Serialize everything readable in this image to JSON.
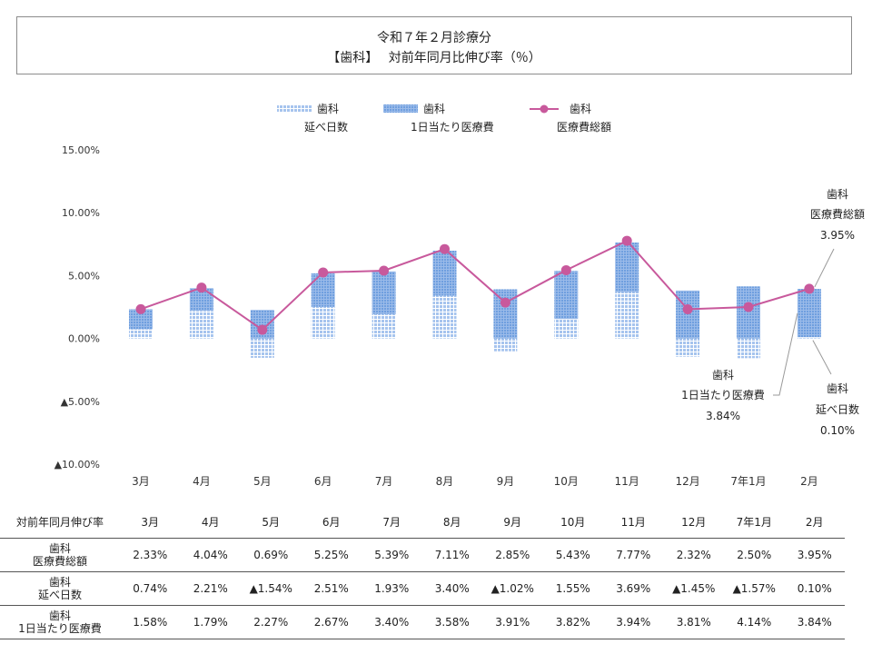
{
  "title": {
    "line1": "令和７年２月診療分",
    "line2": "【歯科】　 対前年同月比伸び率（％）"
  },
  "legend": [
    {
      "line1": "歯科",
      "line2": "延べ日数",
      "kind": "days"
    },
    {
      "line1": "歯科",
      "line2": "1日当たり医療費",
      "kind": "perday"
    },
    {
      "line1": "歯科",
      "line2": "医療費総額",
      "kind": "total"
    }
  ],
  "colors": {
    "bar_days": "#a6c4ee",
    "bar_perday": "#7fa9e2",
    "line_total": "#c8599c"
  },
  "chart_data": {
    "type": "bar",
    "stacked": true,
    "categories": [
      "3月",
      "4月",
      "5月",
      "6月",
      "7月",
      "8月",
      "9月",
      "10月",
      "11月",
      "12月",
      "7年1月",
      "2月"
    ],
    "ylim": [
      -10,
      15
    ],
    "yticks": [
      -10,
      -5,
      0,
      5,
      10,
      15
    ],
    "ytick_labels": [
      "▲10.00%",
      "▲5.00%",
      "0.00%",
      "5.00%",
      "10.00%",
      "15.00%"
    ],
    "grid": false,
    "legend_position": "top",
    "series": [
      {
        "name": "歯科 延べ日数",
        "type": "bar",
        "values": [
          0.74,
          2.21,
          -1.54,
          2.51,
          1.93,
          3.4,
          -1.02,
          1.55,
          3.69,
          -1.45,
          -1.57,
          0.1
        ]
      },
      {
        "name": "歯科 1日当たり医療費",
        "type": "bar",
        "values": [
          1.58,
          1.79,
          2.27,
          2.67,
          3.4,
          3.58,
          3.91,
          3.82,
          3.94,
          3.81,
          4.14,
          3.84
        ]
      },
      {
        "name": "歯科 医療費総額",
        "type": "line",
        "values": [
          2.33,
          4.04,
          0.69,
          5.25,
          5.39,
          7.11,
          2.85,
          5.43,
          7.77,
          2.32,
          2.5,
          3.95
        ]
      }
    ],
    "annotations": [
      {
        "series": "total",
        "lines": [
          "歯科",
          "医療費総額",
          "3.95%"
        ]
      },
      {
        "series": "perday",
        "lines": [
          "歯科",
          "1日当たり医療費",
          "3.84%"
        ]
      },
      {
        "series": "days",
        "lines": [
          "歯科",
          "延べ日数",
          "0.10%"
        ]
      }
    ]
  },
  "table": {
    "header_label": "対前年同月伸び率",
    "months": [
      "3月",
      "4月",
      "5月",
      "6月",
      "7月",
      "8月",
      "9月",
      "10月",
      "11月",
      "12月",
      "7年1月",
      "2月"
    ],
    "rows": [
      {
        "label1": "歯科",
        "label2": "医療費総額",
        "cells": [
          "2.33%",
          "4.04%",
          "0.69%",
          "5.25%",
          "5.39%",
          "7.11%",
          "2.85%",
          "5.43%",
          "7.77%",
          "2.32%",
          "2.50%",
          "3.95%"
        ]
      },
      {
        "label1": "歯科",
        "label2": "延べ日数",
        "cells": [
          "0.74%",
          "2.21%",
          "▲1.54%",
          "2.51%",
          "1.93%",
          "3.40%",
          "▲1.02%",
          "1.55%",
          "3.69%",
          "▲1.45%",
          "▲1.57%",
          "0.10%"
        ]
      },
      {
        "label1": "歯科",
        "label2": "1日当たり医療費",
        "cells": [
          "1.58%",
          "1.79%",
          "2.27%",
          "2.67%",
          "3.40%",
          "3.58%",
          "3.91%",
          "3.82%",
          "3.94%",
          "3.81%",
          "4.14%",
          "3.84%"
        ]
      }
    ]
  }
}
